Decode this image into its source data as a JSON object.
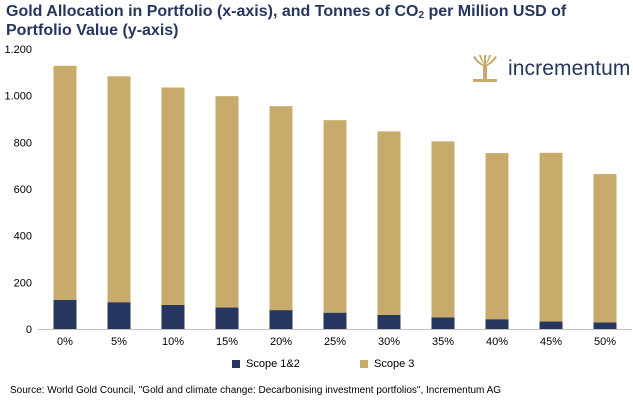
{
  "title": {
    "part1": "Gold Allocation in Portfolio (x-axis), and Tonnes of CO",
    "sub": "2",
    "part2": " per Million USD of Portfolio Value (y-axis)"
  },
  "logo": {
    "text": "incrementum",
    "icon": "tree-icon"
  },
  "source": "Source: World Gold Council, \"Gold and climate change: Decarbonising investment portfolios\", Incrementum AG",
  "colors": {
    "scope12": "#27365f",
    "scope3": "#c8ab6b",
    "title": "#27365f"
  },
  "chart_data": {
    "type": "bar",
    "stacked": true,
    "categories": [
      "0%",
      "5%",
      "10%",
      "15%",
      "20%",
      "25%",
      "30%",
      "35%",
      "40%",
      "45%",
      "50%"
    ],
    "series": [
      {
        "name": "Scope 1&2",
        "values": [
          125,
          115,
          103,
          92,
          81,
          70,
          60,
          50,
          42,
          32,
          28
        ],
        "color": "#27365f"
      },
      {
        "name": "Scope 3",
        "values": [
          1003,
          968,
          932,
          906,
          874,
          825,
          787,
          754,
          712,
          723,
          636
        ],
        "color": "#c8ab6b"
      }
    ],
    "ylim": [
      0,
      1200
    ],
    "yticks": [
      0,
      200,
      400,
      600,
      800,
      1000,
      1200
    ],
    "ytick_labels": [
      "0",
      "200",
      "400",
      "600",
      "800",
      "1.000",
      "1.200"
    ],
    "legend_position": "bottom",
    "grid": false
  }
}
